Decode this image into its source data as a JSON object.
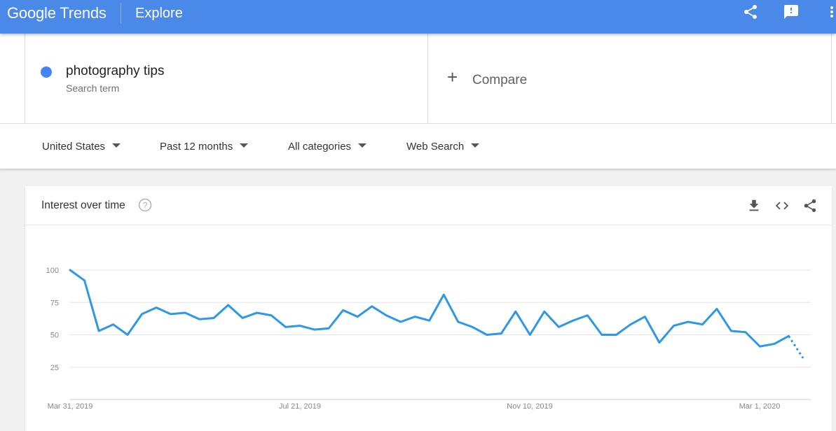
{
  "header": {
    "logo_google": "Google",
    "logo_trends": "Trends",
    "title": "Explore",
    "icons": [
      "share-icon",
      "feedback-icon",
      "more-vert-icon"
    ],
    "accent": "#4a89e8"
  },
  "search_term": {
    "name": "photography tips",
    "subtitle": "Search term",
    "color": "#4285f4"
  },
  "compare": {
    "icon": "+",
    "label": "Compare"
  },
  "filters": {
    "region": "United States",
    "time": "Past 12 months",
    "category": "All categories",
    "search_type": "Web Search"
  },
  "card": {
    "title": "Interest over time",
    "icons": [
      "help-icon",
      "download-icon",
      "embed-icon",
      "share-icon"
    ]
  },
  "chart_data": {
    "type": "line",
    "title": "Interest over time",
    "x_tick_labels": [
      "Mar 31, 2019",
      "Jul 21, 2019",
      "Nov 10, 2019",
      "Mar 1, 2020"
    ],
    "y_tick_labels": [
      "25",
      "50",
      "75",
      "100"
    ],
    "ylim": [
      0,
      100
    ],
    "grid": true,
    "series": [
      {
        "color": "#2d98e8",
        "values": [
          100,
          92,
          53,
          58,
          50,
          66,
          71,
          66,
          67,
          62,
          63,
          73,
          63,
          67,
          65,
          56,
          57,
          54,
          55,
          69,
          64,
          72,
          65,
          60,
          64,
          61,
          81,
          60,
          56,
          50,
          51,
          68,
          50,
          68,
          56,
          61,
          65,
          50,
          50,
          58,
          64,
          44,
          57,
          60,
          58,
          70,
          53,
          52,
          41,
          43,
          49,
          32
        ],
        "partial_last_points": 2
      }
    ]
  }
}
